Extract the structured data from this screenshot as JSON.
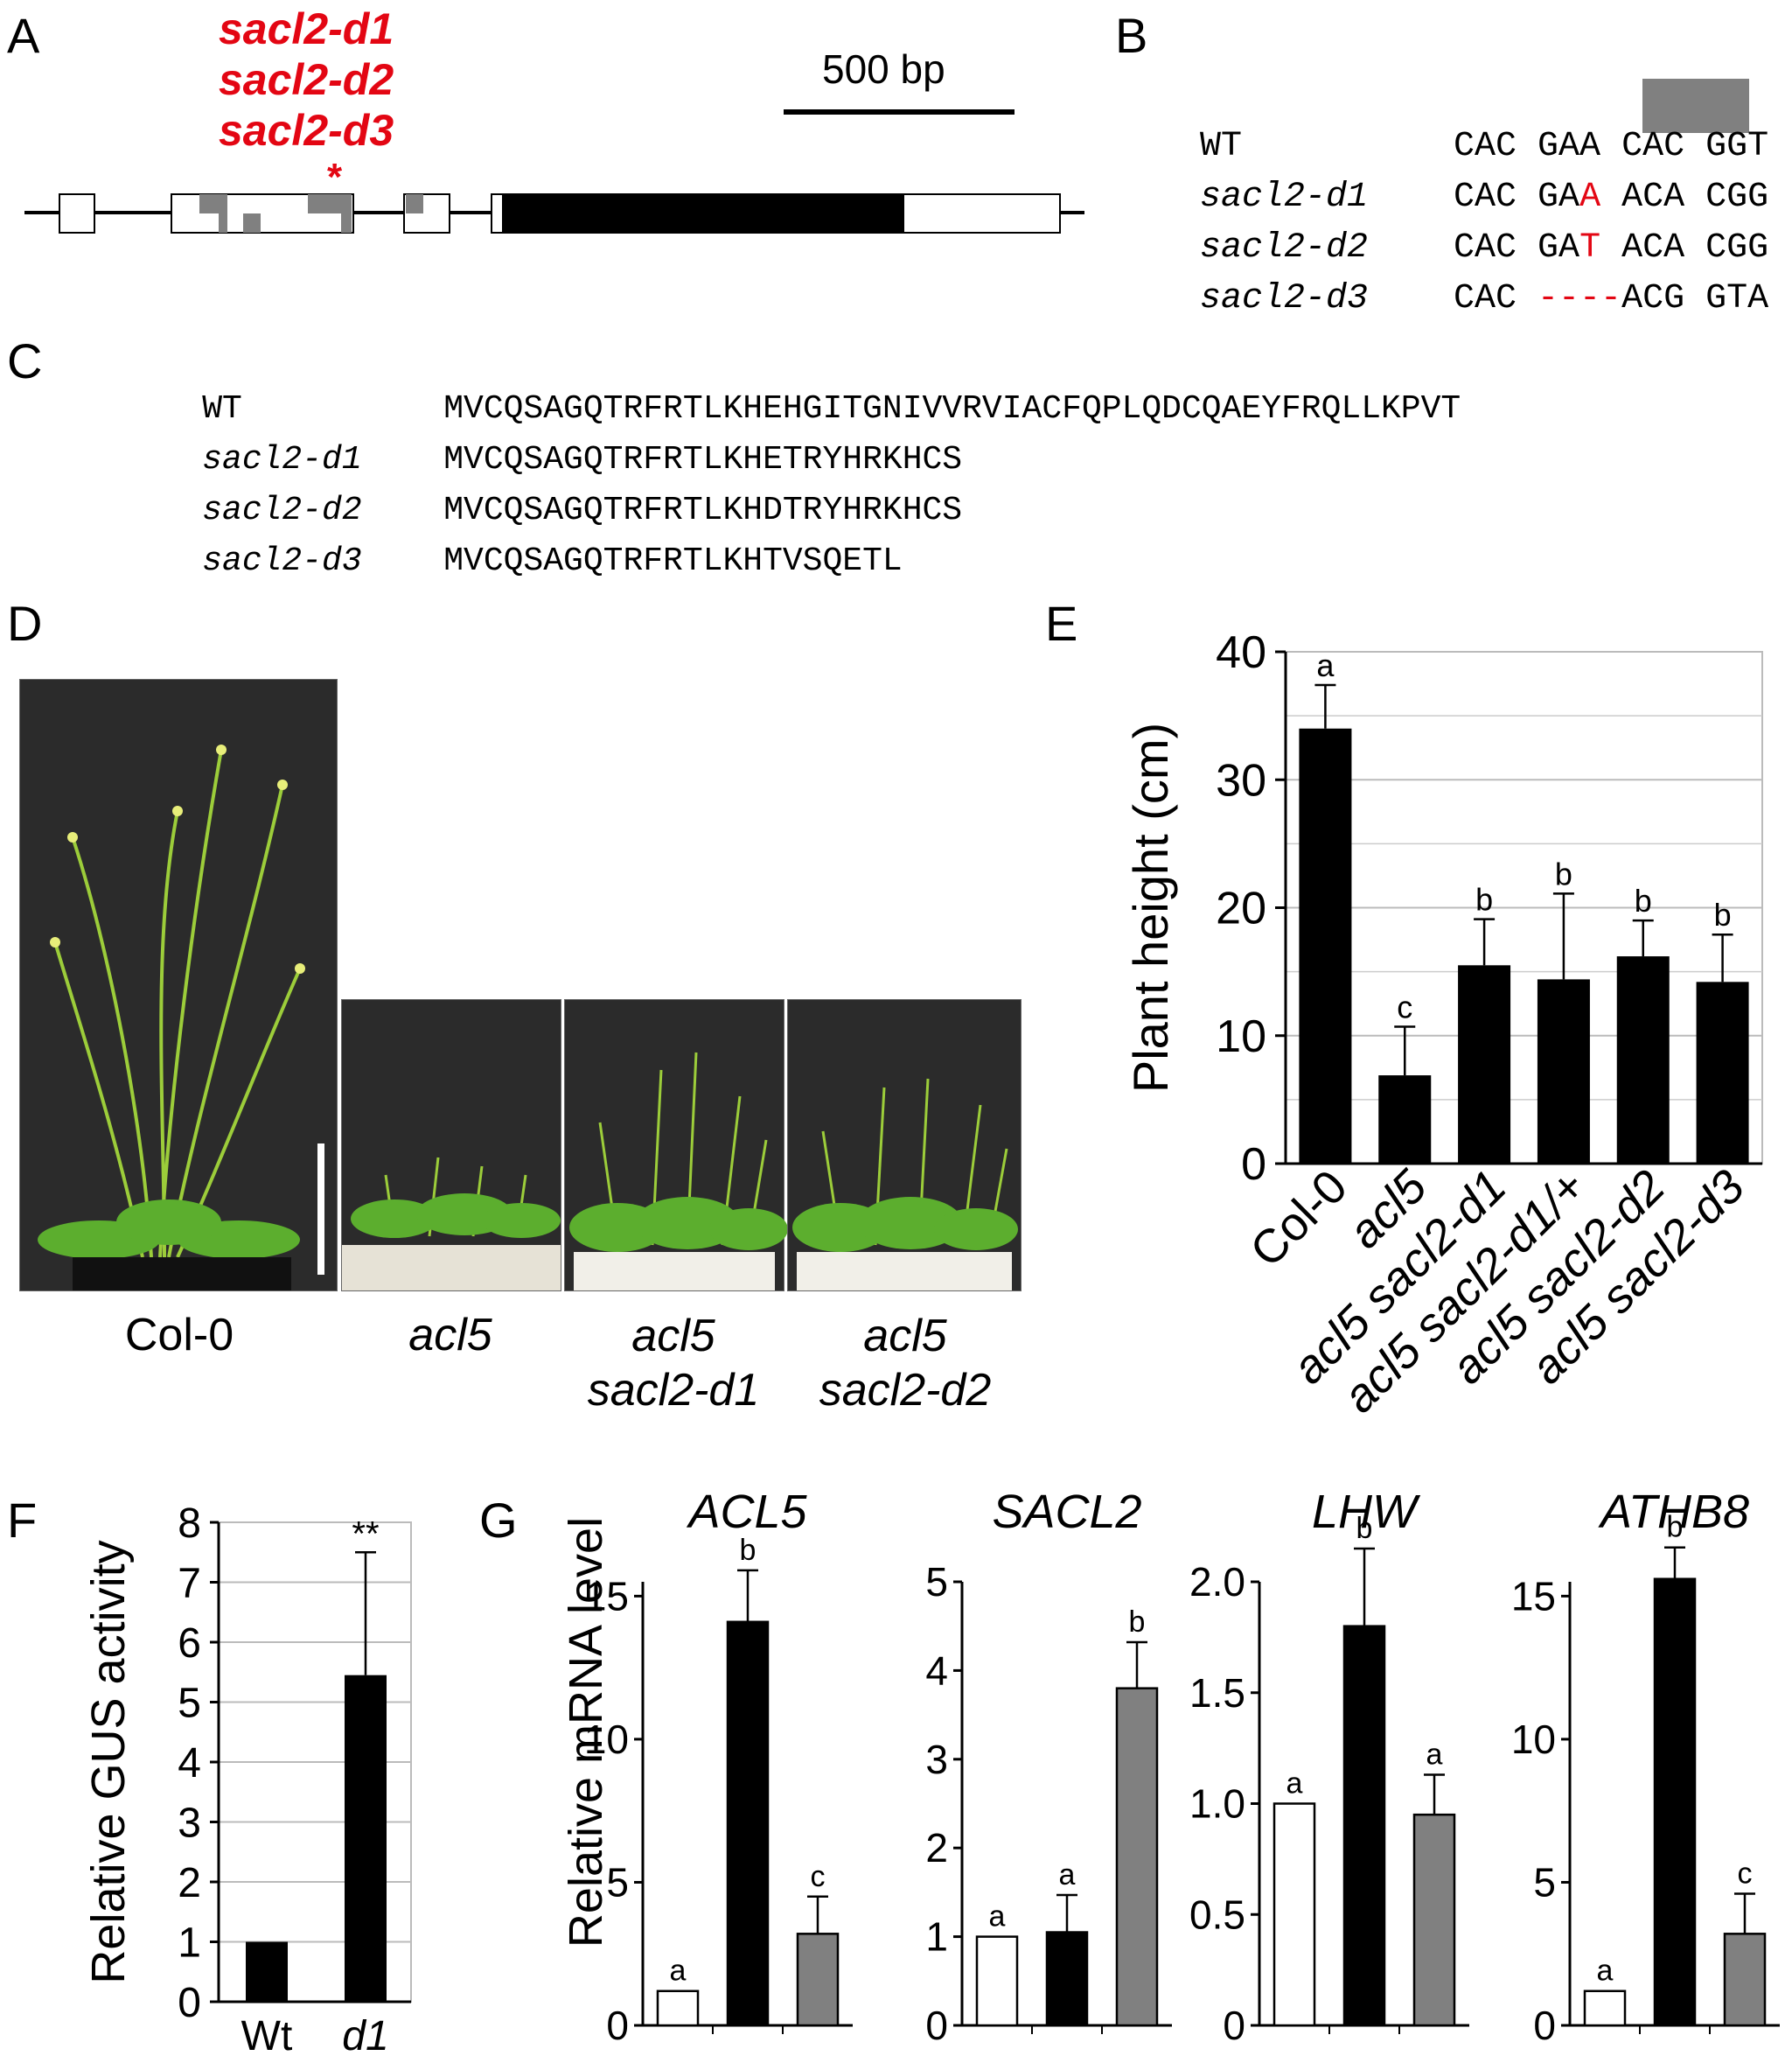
{
  "panels": {
    "A": "A",
    "B": "B",
    "C": "C",
    "D": "D",
    "E": "E",
    "F": "F",
    "G": "G"
  },
  "panelA": {
    "alleles": [
      "sacl2-d1",
      "sacl2-d2",
      "sacl2-d3"
    ],
    "asterisk": "*",
    "scalebar": "500 bp"
  },
  "panelB": {
    "rows": [
      {
        "name": "WT",
        "codons": [
          "CAC",
          "GAA",
          "CAC",
          "GGT"
        ]
      },
      {
        "name": "sacl2-d1",
        "codons": [
          "CAC",
          "GA",
          "A",
          "ACA",
          "CGG"
        ]
      },
      {
        "name": "sacl2-d2",
        "codons": [
          "CAC",
          "GA",
          "T",
          "ACA",
          "CGG"
        ]
      },
      {
        "name": "sacl2-d3",
        "codons": [
          "CAC",
          "----",
          "ACG",
          "GTA"
        ]
      }
    ]
  },
  "panelC": {
    "rows": [
      {
        "name": "WT",
        "seq": "MVCQSAGQTRFRTLKHEHGITGNIVVRVIACFQPLQDCQAEYFRQLLKPVT"
      },
      {
        "name": "sacl2-d1",
        "seq": "MVCQSAGQTRFRTLKHETRYHRKHCS"
      },
      {
        "name": "sacl2-d2",
        "seq": "MVCQSAGQTRFRTLKHDTRYHRKHCS"
      },
      {
        "name": "sacl2-d3",
        "seq": "MVCQSAGQTRFRTLKHTVSQETL"
      }
    ]
  },
  "panelD": {
    "captions": [
      {
        "line1": "Col-0",
        "line2": ""
      },
      {
        "line1": "acl5",
        "line2": ""
      },
      {
        "line1": "acl5",
        "line2": "sacl2-d1"
      },
      {
        "line1": "acl5",
        "line2": "sacl2-d2"
      }
    ]
  },
  "chart_data": [
    {
      "type": "bar",
      "panel": "E",
      "ylabel": "Plant height (cm)",
      "ylim": [
        0,
        40
      ],
      "yticks": [
        0,
        10,
        20,
        30,
        40
      ],
      "categories": [
        "Col-0",
        "acl5",
        "acl5 sacl2-d1",
        "acl5 sacl2-d1/+",
        "acl5 sacl2-d2",
        "acl5 sacl2-d3"
      ],
      "values": [
        34.0,
        6.9,
        15.5,
        14.4,
        16.2,
        14.2
      ],
      "errors": [
        3.4,
        3.8,
        3.6,
        6.7,
        2.8,
        3.7
      ],
      "letters": [
        "a",
        "c",
        "b",
        "b",
        "b",
        "b"
      ],
      "grid": true
    },
    {
      "type": "bar",
      "panel": "F",
      "ylabel": "Relative GUS activity",
      "ylim": [
        0,
        8
      ],
      "yticks": [
        0,
        1,
        2,
        3,
        4,
        5,
        6,
        7,
        8
      ],
      "categories": [
        "Wt",
        "d1"
      ],
      "values": [
        1.0,
        5.45
      ],
      "errors": [
        0,
        2.05
      ],
      "annotation": "**",
      "grid": true
    },
    {
      "type": "bar",
      "panel": "G",
      "ylabel": "Relative mRNA level",
      "subplots": [
        {
          "title": "ACL5",
          "ylim": [
            0,
            15.5
          ],
          "yticks": [
            0,
            5,
            10,
            15
          ],
          "values": [
            1.2,
            14.1,
            3.2
          ],
          "errors": [
            0,
            1.8,
            1.3
          ],
          "letters": [
            "a",
            "b",
            "c"
          ]
        },
        {
          "title": "SACL2",
          "ylim": [
            0,
            5
          ],
          "yticks": [
            0,
            1,
            2,
            3,
            4,
            5
          ],
          "values": [
            1.0,
            1.05,
            3.8
          ],
          "errors": [
            0,
            0.42,
            0.52
          ],
          "letters": [
            "a",
            "a",
            "b"
          ]
        },
        {
          "title": "LHW",
          "ylim": [
            0,
            2.0
          ],
          "yticks": [
            0,
            0.5,
            1.0,
            1.5,
            2.0
          ],
          "ytick_labels": [
            "0",
            "0.5",
            "1.0",
            "1.5",
            "2.0"
          ],
          "values": [
            1.0,
            1.8,
            0.95
          ],
          "errors": [
            0,
            0.35,
            0.18
          ],
          "letters": [
            "a",
            "b",
            "a"
          ]
        },
        {
          "title": "ATHB8",
          "ylim": [
            0,
            15.5
          ],
          "yticks": [
            0,
            5,
            10,
            15
          ],
          "values": [
            1.2,
            15.6,
            3.2
          ],
          "errors": [
            0,
            1.1,
            1.4
          ],
          "letters": [
            "a",
            "b",
            "c"
          ]
        }
      ],
      "bar_colors": [
        "#ffffff",
        "#000000",
        "#808080"
      ]
    }
  ]
}
